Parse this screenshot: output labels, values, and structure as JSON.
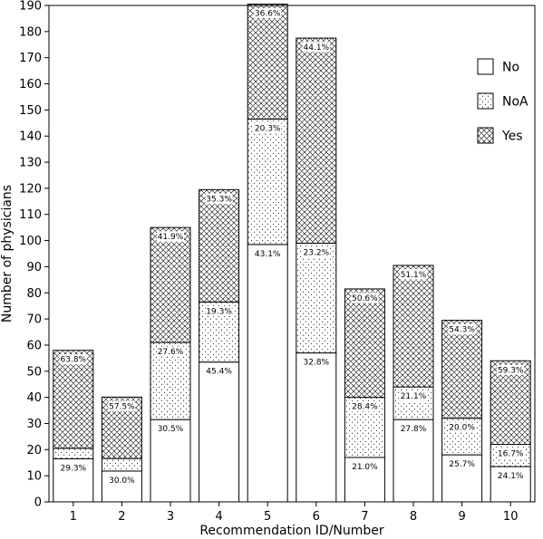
{
  "chart_data": {
    "type": "bar",
    "stacked": true,
    "title": "",
    "xlabel": "Recommendation ID/Number",
    "ylabel": "Number of physicians",
    "ylim": [
      0,
      190
    ],
    "ytick_step": 10,
    "grid": false,
    "legend_position": "top-right",
    "categories": [
      "1",
      "2",
      "3",
      "4",
      "5",
      "6",
      "7",
      "8",
      "9",
      "10"
    ],
    "series": [
      {
        "name": "No",
        "pattern": "none",
        "values": [
          16.5,
          11.8,
          31.5,
          53.5,
          98.5,
          57,
          17,
          31.5,
          18,
          13.5
        ],
        "labels": [
          "29.3%",
          "30.0%",
          "30.5%",
          "45.4%",
          "43.1%",
          "32.8%",
          "21.0%",
          "27.8%",
          "25.7%",
          "24.1%"
        ]
      },
      {
        "name": "NoA",
        "pattern": "dots",
        "values": [
          4,
          4.8,
          29.5,
          23,
          48,
          42,
          23,
          12.5,
          14,
          8.5
        ],
        "labels": [
          "",
          "",
          "27.6%",
          "19.3%",
          "20.3%",
          "23.2%",
          "28.4%",
          "21.1%",
          "20.0%",
          "16.7%"
        ]
      },
      {
        "name": "Yes",
        "pattern": "crosshatch",
        "values": [
          37.5,
          23.5,
          44,
          43,
          44,
          78.5,
          41.5,
          46.5,
          37.5,
          32
        ],
        "labels": [
          "63.8%",
          "57.5%",
          "41.9%",
          "35.3%",
          "36.6%",
          "44.1%",
          "50.6%",
          "51.1%",
          "54.3%",
          "59.3%"
        ]
      }
    ]
  }
}
